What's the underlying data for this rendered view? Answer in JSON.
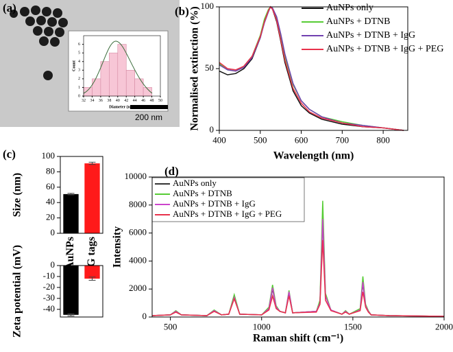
{
  "chart_data": [
    {
      "type": "histogram",
      "panel": "(a)",
      "scale_bar": "200 nm",
      "xlabel": "Diameter (nm)",
      "ylabel": "Count",
      "bins": [
        32,
        34,
        36,
        38,
        40,
        42,
        44,
        46,
        48
      ],
      "counts": [
        1,
        2,
        4,
        5,
        6,
        3,
        2,
        1
      ],
      "color": "#f7c6d6",
      "xlim": [
        32,
        50
      ],
      "xticks": [
        32,
        34,
        36,
        38,
        40,
        42,
        44,
        46,
        48,
        50
      ],
      "ylim": [
        0,
        7
      ],
      "yticks": [
        0,
        1,
        2,
        3,
        4,
        5,
        6
      ]
    },
    {
      "type": "line",
      "panel": "(b)",
      "xlabel": "Wavelength (nm)",
      "ylabel": "Normalised extinction (%)",
      "x": [
        400,
        420,
        440,
        460,
        480,
        500,
        510,
        520,
        525,
        530,
        540,
        550,
        560,
        580,
        600,
        620,
        650,
        700,
        750,
        800,
        850
      ],
      "series": [
        {
          "name": "AuNPs only",
          "color": "#111111",
          "values": [
            48,
            45,
            46,
            50,
            58,
            75,
            88,
            97,
            100,
            98,
            88,
            72,
            55,
            32,
            20,
            14,
            9,
            5,
            3,
            2,
            0
          ]
        },
        {
          "name": "AuNPs + DTNB",
          "color": "#55cc33",
          "values": [
            54,
            49,
            48,
            52,
            60,
            77,
            90,
            98,
            100,
            99,
            91,
            76,
            60,
            37,
            24,
            17,
            11,
            7,
            4,
            2,
            0
          ]
        },
        {
          "name": "AuNPs + DTNB + IgG",
          "color": "#7040b0",
          "values": [
            53,
            49,
            48,
            51,
            59,
            75,
            87,
            96,
            100,
            99,
            92,
            78,
            62,
            38,
            24,
            17,
            11,
            6,
            4,
            2,
            0
          ]
        },
        {
          "name": "AuNPs + DTNB + IgG + PEG",
          "color": "#e8304a",
          "values": [
            55,
            50,
            49,
            52,
            60,
            76,
            88,
            97,
            100,
            98,
            89,
            73,
            57,
            34,
            22,
            15,
            10,
            6,
            3,
            2,
            0
          ]
        }
      ],
      "xlim": [
        400,
        860
      ],
      "xticks": [
        400,
        500,
        600,
        700,
        800
      ],
      "ylim": [
        0,
        100
      ],
      "yticks": [
        0,
        50,
        100
      ]
    },
    {
      "type": "bar",
      "panel": "(c)",
      "ylabel": "Size (nm)",
      "categories": [
        "AuNPs",
        "IgG tags"
      ],
      "values": [
        51,
        91
      ],
      "errors": [
        1,
        1.5
      ],
      "colors": [
        "#000000",
        "#ff1a1a"
      ],
      "ylim": [
        0,
        100
      ],
      "yticks": [
        0,
        20,
        40,
        60,
        80,
        100
      ]
    },
    {
      "type": "bar",
      "ylabel": "Zeta potential (mV)",
      "values": [
        -45,
        -12
      ],
      "errors": [
        1,
        1.5
      ],
      "colors": [
        "#000000",
        "#ff1a1a"
      ],
      "ylim": [
        -47,
        0
      ],
      "yticks": [
        -40,
        -30,
        -20,
        -10,
        0
      ]
    },
    {
      "type": "line",
      "panel": "(d)",
      "xlabel": "Raman shift (cm⁻¹)",
      "ylabel": "Intensity",
      "legend_box": true,
      "x": [
        400,
        500,
        530,
        560,
        700,
        740,
        780,
        820,
        850,
        880,
        1000,
        1040,
        1060,
        1080,
        1100,
        1130,
        1150,
        1170,
        1300,
        1320,
        1335,
        1350,
        1380,
        1440,
        1460,
        1480,
        1540,
        1555,
        1570,
        1585,
        1600,
        1700,
        2000
      ],
      "series": [
        {
          "name": "AuNPs only",
          "color": "#333333",
          "values": [
            100,
            150,
            400,
            150,
            100,
            450,
            150,
            200,
            1400,
            200,
            150,
            600,
            2000,
            700,
            400,
            300,
            1700,
            300,
            400,
            1000,
            7000,
            1500,
            500,
            200,
            400,
            200,
            500,
            2400,
            800,
            400,
            150,
            100,
            50
          ]
        },
        {
          "name": "AuNPs + DTNB",
          "color": "#55cc33",
          "values": [
            100,
            150,
            450,
            150,
            100,
            500,
            150,
            200,
            1600,
            200,
            150,
            700,
            2300,
            800,
            400,
            300,
            1900,
            300,
            400,
            1200,
            8300,
            1700,
            500,
            200,
            450,
            200,
            600,
            2900,
            900,
            450,
            150,
            100,
            50
          ]
        },
        {
          "name": "AuNPs + DTNB + IgG",
          "color": "#cc44cc",
          "values": [
            100,
            150,
            400,
            150,
            100,
            450,
            150,
            200,
            1400,
            200,
            150,
            600,
            2100,
            700,
            400,
            300,
            1800,
            300,
            400,
            1000,
            7000,
            1500,
            500,
            200,
            400,
            200,
            500,
            2500,
            800,
            400,
            150,
            100,
            50
          ]
        },
        {
          "name": "AuNPs + DTNB + IgG + PEG",
          "color": "#e8304a",
          "values": [
            100,
            150,
            350,
            150,
            100,
            400,
            150,
            200,
            1300,
            200,
            150,
            500,
            1500,
            600,
            400,
            300,
            1500,
            300,
            350,
            900,
            5500,
            1200,
            450,
            200,
            350,
            200,
            450,
            1800,
            700,
            350,
            150,
            100,
            50
          ]
        }
      ],
      "xlim": [
        400,
        2000
      ],
      "xticks": [
        500,
        1000,
        1500,
        2000
      ],
      "ylim": [
        0,
        10000
      ],
      "yticks": [
        0,
        2000,
        4000,
        6000,
        8000,
        10000
      ]
    }
  ]
}
